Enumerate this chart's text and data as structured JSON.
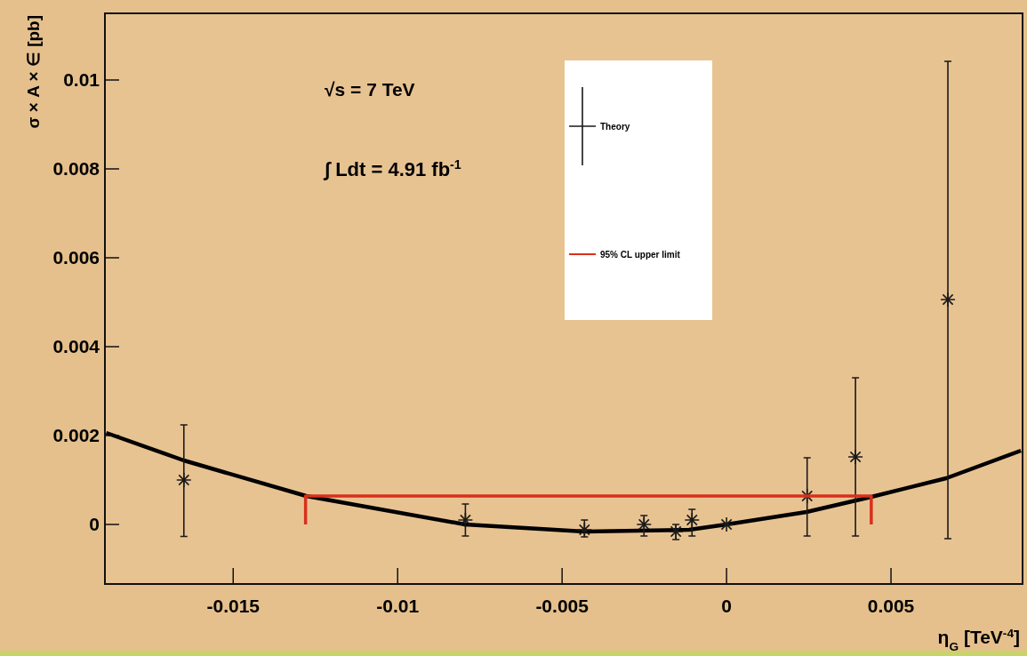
{
  "chart_data": {
    "type": "scatter",
    "xlabel": "η$_{G}$ [TeV$^{-4}$]",
    "ylabel": "σ × A × ∈ [pb]",
    "xlim": [
      -0.0189,
      0.009
    ],
    "ylim": [
      -0.00134,
      0.0115
    ],
    "xticks": [
      -0.015,
      -0.01,
      -0.005,
      0,
      0.005
    ],
    "yticks": [
      0,
      0.002,
      0.004,
      0.006,
      0.008,
      0.01
    ],
    "annotations": [
      "√s = 7 TeV",
      "∫ Ldt = 4.91 fb$^{-1}$"
    ],
    "legend": "top",
    "grid": false,
    "series": [
      {
        "type": "line",
        "color": "#000000",
        "x": [
          -0.01886,
          -0.0165,
          -0.01278,
          -0.00795,
          -0.00432,
          -0.00114,
          0,
          0.00243,
          0.0044,
          0.00668,
          0.00895
        ],
        "values": [
          0.00206,
          0.00144,
          0.00064,
          0,
          -0.00016,
          -0.00012,
          0,
          0.00028,
          0.00062,
          0.00104,
          0.00166
        ]
      },
      {
        "name": "Theory",
        "color": "#1a1a1a",
        "marker": "cross",
        "x": [
          -0.0165,
          -0.00794,
          -0.00432,
          -0.00251,
          -0.00154,
          -0.00105,
          0,
          0.00245,
          0.00392,
          0.00673
        ],
        "values": [
          0.001,
          0.0001,
          -0.00012,
          0,
          -0.00016,
          0.0001,
          0,
          0.00064,
          0.00152,
          0.00506
        ],
        "errors": [
          [
            -0.00027,
            0.00224
          ],
          [
            -0.00026,
            0.00046
          ],
          [
            -0.00028,
            0.0001
          ],
          [
            -0.00026,
            0.0002
          ],
          [
            -0.00034,
            0.0
          ],
          [
            -0.00026,
            0.00034
          ],
          null,
          [
            -0.00026,
            0.0015
          ],
          [
            -0.00026,
            0.0033
          ],
          [
            -0.00032,
            0.01042
          ]
        ]
      },
      {
        "type": "line",
        "name": "95% CL upper limit",
        "color": "#d8301c",
        "x": [
          -0.0128,
          -0.0128,
          0.0044,
          0.0044
        ],
        "values": [
          0,
          0.00064,
          0.00064,
          0
        ]
      }
    ]
  }
}
